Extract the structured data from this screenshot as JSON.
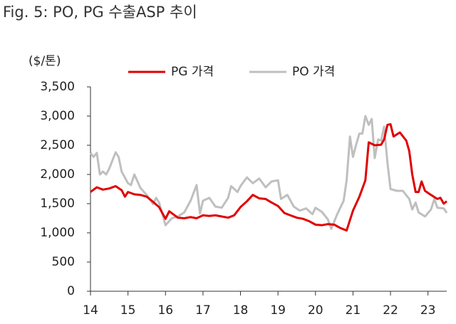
{
  "chart_data": {
    "type": "line",
    "title": "Fig. 5: PO, PG 수출ASP 추이",
    "y_label": "($/톤)",
    "legend": "top",
    "xlim": [
      14,
      23.5
    ],
    "xticks": [
      14,
      15,
      16,
      17,
      18,
      19,
      20,
      21,
      22,
      23
    ],
    "ylim": [
      0,
      3500
    ],
    "yticks": [
      0,
      500,
      {
        "value": 1000,
        "label": "1,000"
      },
      {
        "value": 1500,
        "label": "1,500"
      },
      {
        "value": 2000,
        "label": "2,000"
      },
      {
        "value": 2500,
        "label": "2,500"
      },
      {
        "value": 3000,
        "label": "3,000"
      },
      {
        "value": 3500,
        "label": "3,500"
      }
    ],
    "series": [
      {
        "name": "PG 가격",
        "color": "#e00000",
        "x": [
          14.0,
          14.17,
          14.33,
          14.5,
          14.67,
          14.83,
          14.92,
          15.0,
          15.17,
          15.33,
          15.5,
          15.67,
          15.83,
          16.0,
          16.1,
          16.33,
          16.5,
          16.67,
          16.83,
          17.0,
          17.17,
          17.33,
          17.5,
          17.67,
          17.83,
          18.0,
          18.17,
          18.33,
          18.5,
          18.67,
          18.83,
          19.0,
          19.17,
          19.33,
          19.5,
          19.67,
          19.83,
          20.0,
          20.17,
          20.33,
          20.5,
          20.67,
          20.83,
          21.0,
          21.17,
          21.33,
          21.42,
          21.58,
          21.75,
          21.83,
          21.92,
          22.0,
          22.08,
          22.25,
          22.42,
          22.5,
          22.58,
          22.67,
          22.75,
          22.83,
          22.92,
          23.08,
          23.25,
          23.33,
          23.42,
          23.5
        ],
        "values": [
          1700,
          1780,
          1740,
          1760,
          1800,
          1730,
          1620,
          1700,
          1660,
          1650,
          1620,
          1530,
          1440,
          1240,
          1370,
          1260,
          1250,
          1270,
          1250,
          1300,
          1290,
          1300,
          1280,
          1260,
          1300,
          1440,
          1540,
          1650,
          1590,
          1580,
          1520,
          1460,
          1340,
          1300,
          1260,
          1240,
          1200,
          1140,
          1130,
          1150,
          1140,
          1080,
          1040,
          1380,
          1620,
          1900,
          2550,
          2500,
          2510,
          2600,
          2850,
          2860,
          2650,
          2720,
          2580,
          2400,
          2000,
          1700,
          1700,
          1880,
          1720,
          1650,
          1580,
          1600,
          1500,
          1540
        ]
      },
      {
        "name": "PO 가격",
        "color": "#bfbfbf",
        "x": [
          14.0,
          14.08,
          14.17,
          14.25,
          14.33,
          14.42,
          14.5,
          14.67,
          14.75,
          14.83,
          15.0,
          15.08,
          15.17,
          15.33,
          15.5,
          15.67,
          15.75,
          15.83,
          16.0,
          16.17,
          16.33,
          16.5,
          16.67,
          16.83,
          16.92,
          17.0,
          17.17,
          17.33,
          17.5,
          17.67,
          17.75,
          17.92,
          18.0,
          18.17,
          18.33,
          18.5,
          18.67,
          18.83,
          19.0,
          19.08,
          19.25,
          19.42,
          19.58,
          19.75,
          19.92,
          20.0,
          20.17,
          20.33,
          20.42,
          20.58,
          20.75,
          20.83,
          20.92,
          21.0,
          21.08,
          21.17,
          21.25,
          21.33,
          21.42,
          21.5,
          21.58,
          21.67,
          21.75,
          21.83,
          21.92,
          22.0,
          22.17,
          22.33,
          22.5,
          22.58,
          22.67,
          22.75,
          22.92,
          23.08,
          23.17,
          23.25,
          23.42,
          23.5
        ],
        "values": [
          2370,
          2300,
          2370,
          2000,
          2050,
          2000,
          2100,
          2380,
          2300,
          2050,
          1850,
          1820,
          2000,
          1770,
          1650,
          1490,
          1600,
          1520,
          1130,
          1250,
          1280,
          1350,
          1550,
          1820,
          1330,
          1550,
          1600,
          1450,
          1430,
          1600,
          1800,
          1700,
          1800,
          1950,
          1850,
          1930,
          1780,
          1880,
          1900,
          1580,
          1650,
          1450,
          1380,
          1420,
          1320,
          1430,
          1360,
          1230,
          1070,
          1320,
          1550,
          1900,
          2650,
          2300,
          2500,
          2700,
          2700,
          3000,
          2850,
          2950,
          2280,
          2600,
          2580,
          2820,
          2200,
          1750,
          1720,
          1720,
          1580,
          1400,
          1520,
          1350,
          1280,
          1400,
          1580,
          1430,
          1420,
          1340
        ]
      }
    ]
  }
}
